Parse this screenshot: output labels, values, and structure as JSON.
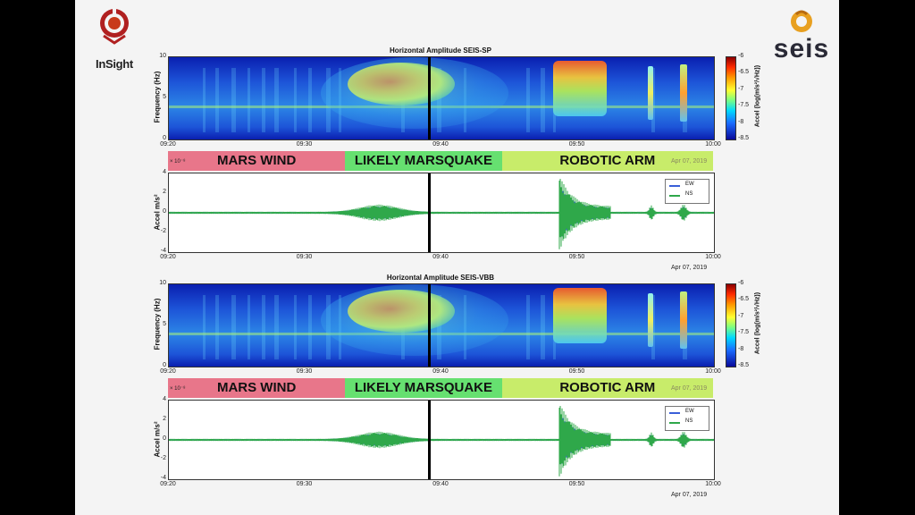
{
  "logos": {
    "left_text": "InSight",
    "right_text": "seis"
  },
  "panels": [
    {
      "id": "sp",
      "title": "Horizontal Amplitude SEIS-SP",
      "date": "Apr 07, 2019",
      "wave_scale": "× 10⁻⁸"
    },
    {
      "id": "vbb",
      "title": "Horizontal Amplitude SEIS-VBB",
      "date": "Apr 07, 2019",
      "wave_scale": "× 10⁻⁸"
    }
  ],
  "bands": [
    {
      "label": "MARS WIND",
      "start": "09:20",
      "end": "09:33",
      "color": "#e8768a"
    },
    {
      "label": "LIKELY MARSQUAKE",
      "start": "09:33",
      "end": "09:44.5",
      "color": "#66e070"
    },
    {
      "label": "ROBOTIC ARM",
      "start": "09:44.5",
      "end": "10:00",
      "color": "#c8ec6a"
    }
  ],
  "chart_data": [
    {
      "type": "heatmap",
      "title": "Horizontal Amplitude SEIS-SP",
      "ylabel": "Frequency (Hz)",
      "xlabel": "",
      "x_ticks": [
        "09:20",
        "09:30",
        "09:40",
        "09:50",
        "10:00"
      ],
      "y_ticks": [
        "0",
        "5",
        "10"
      ],
      "ylim": [
        0,
        10
      ],
      "colorbar": {
        "label": "Accel (log(m/s²/√Hz))",
        "ticks": [
          "-6",
          "-6.5",
          "-7",
          "-7.5",
          "-8",
          "-8.5"
        ],
        "range": [
          -8.5,
          -6
        ]
      },
      "event_marker_time": "09:39"
    },
    {
      "type": "line",
      "title": "",
      "ylabel": "Accel m/s²",
      "xlabel": "",
      "x_ticks": [
        "09:20",
        "09:30",
        "09:40",
        "09:50",
        "10:00"
      ],
      "y_ticks": [
        "4",
        "2",
        "0",
        "-2",
        "-4"
      ],
      "ylim": [
        -4,
        4
      ],
      "legend": [
        "EW",
        "NS"
      ],
      "series": [
        {
          "name": "EW",
          "color": "#3a5fd8"
        },
        {
          "name": "NS",
          "color": "#2fa84a"
        }
      ],
      "event_marker_time": "09:39"
    },
    {
      "type": "heatmap",
      "title": "Horizontal Amplitude SEIS-VBB",
      "ylabel": "Frequency (Hz)",
      "xlabel": "",
      "x_ticks": [
        "09:20",
        "09:30",
        "09:40",
        "09:50",
        "10:00"
      ],
      "y_ticks": [
        "0",
        "5",
        "10"
      ],
      "ylim": [
        0,
        10
      ],
      "colorbar": {
        "label": "Accel (log(m/s²/√Hz))",
        "ticks": [
          "-6",
          "-6.5",
          "-7",
          "-7.5",
          "-8",
          "-8.5"
        ],
        "range": [
          -8.5,
          -6
        ]
      },
      "event_marker_time": "09:39"
    },
    {
      "type": "line",
      "title": "",
      "ylabel": "Accel m/s²",
      "xlabel": "",
      "x_ticks": [
        "09:20",
        "09:30",
        "09:40",
        "09:50",
        "10:00"
      ],
      "y_ticks": [
        "4",
        "2",
        "0",
        "-2",
        "-4"
      ],
      "ylim": [
        -4,
        4
      ],
      "legend": [
        "EW",
        "NS"
      ],
      "series": [
        {
          "name": "EW",
          "color": "#3a5fd8"
        },
        {
          "name": "NS",
          "color": "#2fa84a"
        }
      ],
      "event_marker_time": "09:39"
    }
  ]
}
